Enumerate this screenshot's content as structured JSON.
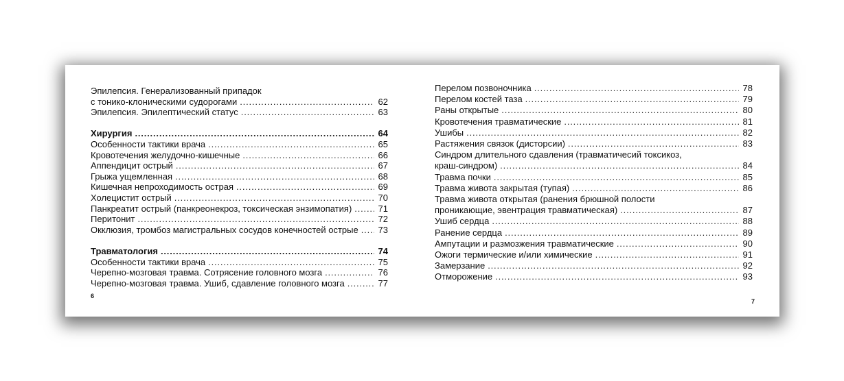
{
  "left_page": {
    "page_number": "6",
    "groups": [
      {
        "entries": [
          {
            "pre": "Эпилепсия. Генерализованный припадок",
            "text": "с тонико-клоническими судорогами",
            "page": "62"
          },
          {
            "text": "Эпилепсия. Эпилептический статус",
            "page": "63"
          }
        ]
      },
      {
        "entries": [
          {
            "text": "Хирургия",
            "page": "64",
            "bold": true
          },
          {
            "text": "Особенности тактики врача",
            "page": "65"
          },
          {
            "text": "Кровотечения желудочно-кишечные",
            "page": "66"
          },
          {
            "text": "Аппендицит острый",
            "page": "67"
          },
          {
            "text": "Грыжа ущемленная",
            "page": "68"
          },
          {
            "text": "Кишечная непроходимость острая",
            "page": "69"
          },
          {
            "text": "Холецистит острый",
            "page": "70"
          },
          {
            "text": "Панкреатит острый (панкреонекроз, токсическая энзимопатия)",
            "page": "71"
          },
          {
            "text": "Перитонит",
            "page": "72"
          },
          {
            "text": "Окклюзия, тромбоз магистральных сосудов конечностей острые",
            "page": "73"
          }
        ]
      },
      {
        "entries": [
          {
            "text": "Травматология",
            "page": "74",
            "bold": true
          },
          {
            "text": "Особенности тактики врача",
            "page": "75"
          },
          {
            "text": "Черепно-мозговая травма. Сотрясение головного мозга",
            "page": "76"
          },
          {
            "text": "Черепно-мозговая травма. Ушиб, сдавление головного мозга",
            "page": "77"
          }
        ]
      }
    ]
  },
  "right_page": {
    "page_number": "7",
    "groups": [
      {
        "entries": [
          {
            "text": "Перелом позвоночника",
            "page": "78"
          },
          {
            "text": "Перелом костей таза",
            "page": "79"
          },
          {
            "text": "Раны открытые",
            "page": "80"
          },
          {
            "text": "Кровотечения травматические",
            "page": "81"
          },
          {
            "text": "Ушибы",
            "page": "82"
          },
          {
            "text": "Растяжения связок (дисторсии)",
            "page": "83"
          },
          {
            "pre": "Синдром длительного сдавления (травматичесий токсикоз,",
            "text": "краш-синдром)",
            "page": "84"
          },
          {
            "text": "Травма почки",
            "page": "85"
          },
          {
            "text": "Травма живота закрытая (тупая)",
            "page": "86"
          },
          {
            "pre": "Травма живота открытая (ранения брюшной полости",
            "text": "проникающие, эвентрация травматическая)",
            "page": "87"
          },
          {
            "text": "Ушиб сердца",
            "page": "88"
          },
          {
            "text": "Ранение сердца",
            "page": "89"
          },
          {
            "text": "Ампутации и размозжения травматические",
            "page": "90"
          },
          {
            "text": "Ожоги термические и/или химические",
            "page": "91"
          },
          {
            "text": "Замерзание",
            "page": "92"
          },
          {
            "text": "Отморожение",
            "page": "93"
          }
        ]
      }
    ]
  }
}
